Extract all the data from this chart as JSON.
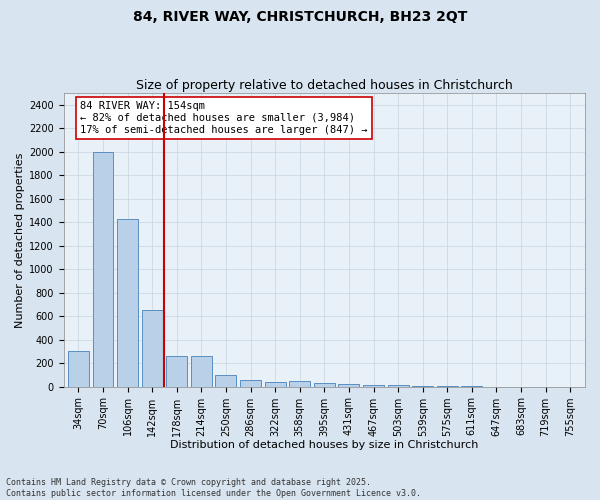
{
  "title1": "84, RIVER WAY, CHRISTCHURCH, BH23 2QT",
  "title2": "Size of property relative to detached houses in Christchurch",
  "xlabel": "Distribution of detached houses by size in Christchurch",
  "ylabel": "Number of detached properties",
  "categories": [
    "34sqm",
    "70sqm",
    "106sqm",
    "142sqm",
    "178sqm",
    "214sqm",
    "250sqm",
    "286sqm",
    "322sqm",
    "358sqm",
    "395sqm",
    "431sqm",
    "467sqm",
    "503sqm",
    "539sqm",
    "575sqm",
    "611sqm",
    "647sqm",
    "683sqm",
    "719sqm",
    "755sqm"
  ],
  "values": [
    300,
    2000,
    1430,
    650,
    265,
    265,
    100,
    55,
    40,
    50,
    30,
    20,
    15,
    10,
    5,
    2,
    1,
    0,
    0,
    0,
    0
  ],
  "bar_color": "#b8d0e8",
  "bar_edge_color": "#5a8fc2",
  "vline_color": "#cc0000",
  "vline_pos": 2.5,
  "annotation_text": "84 RIVER WAY: 154sqm\n← 82% of detached houses are smaller (3,984)\n17% of semi-detached houses are larger (847) →",
  "annotation_box_color": "#ffffff",
  "annotation_box_edge": "#cc0000",
  "ylim": [
    0,
    2500
  ],
  "yticks": [
    0,
    200,
    400,
    600,
    800,
    1000,
    1200,
    1400,
    1600,
    1800,
    2000,
    2200,
    2400
  ],
  "grid_color": "#c8d4e0",
  "background_color": "#d8e4f0",
  "plot_bg_color": "#e8f0f8",
  "footnote": "Contains HM Land Registry data © Crown copyright and database right 2025.\nContains public sector information licensed under the Open Government Licence v3.0.",
  "title_fontsize": 10,
  "subtitle_fontsize": 9,
  "axis_label_fontsize": 8,
  "tick_fontsize": 7,
  "annotation_fontsize": 7.5
}
